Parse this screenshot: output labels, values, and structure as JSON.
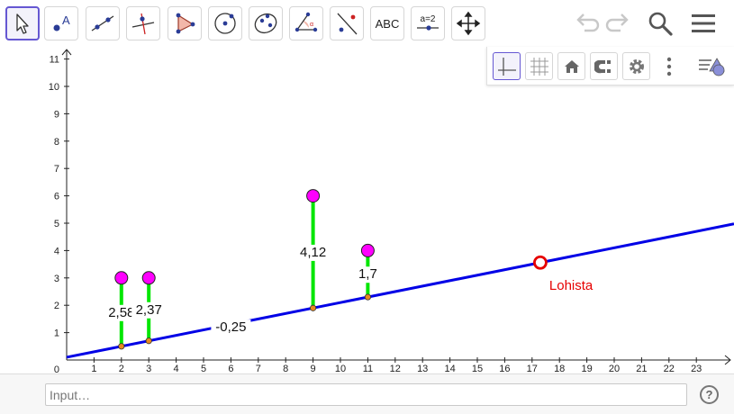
{
  "toolbar": {
    "tools": [
      {
        "name": "move-tool",
        "icon": "arrow-cursor-icon",
        "active": true
      },
      {
        "name": "point-tool",
        "icon": "point-icon"
      },
      {
        "name": "line-tool",
        "icon": "line-through-points-icon"
      },
      {
        "name": "perpendicular-line-tool",
        "icon": "perpendicular-line-icon"
      },
      {
        "name": "polygon-tool",
        "icon": "polygon-icon"
      },
      {
        "name": "circle-tool",
        "icon": "circle-center-point-icon"
      },
      {
        "name": "ellipse-tool",
        "icon": "ellipse-icon"
      },
      {
        "name": "angle-tool",
        "icon": "angle-icon"
      },
      {
        "name": "reflect-tool",
        "icon": "reflect-about-line-icon"
      },
      {
        "name": "text-tool",
        "icon": "text-icon",
        "label": "ABC"
      },
      {
        "name": "slider-tool",
        "icon": "slider-icon",
        "label": "a=2"
      },
      {
        "name": "move-view-tool",
        "icon": "move-graphics-view-icon"
      }
    ],
    "undo_icon": "undo-icon",
    "redo_icon": "redo-icon",
    "search_icon": "search-icon",
    "menu_icon": "hamburger-menu-icon"
  },
  "stylebar": {
    "buttons": [
      {
        "name": "axes-toggle",
        "icon": "axes-icon",
        "active": true
      },
      {
        "name": "grid-toggle",
        "icon": "grid-icon"
      },
      {
        "name": "home-view",
        "icon": "home-icon"
      },
      {
        "name": "point-capturing",
        "icon": "magnet-icon"
      },
      {
        "name": "settings",
        "icon": "gear-icon"
      },
      {
        "name": "more-options",
        "icon": "vertical-dots-icon"
      },
      {
        "name": "toggle-stylebar",
        "icon": "stylebar-shapes-icon"
      }
    ]
  },
  "graphics": {
    "x_ticks": [
      "1",
      "2",
      "3",
      "4",
      "5",
      "6",
      "7",
      "8",
      "9",
      "10",
      "11",
      "12",
      "13",
      "14",
      "15",
      "16",
      "17",
      "18",
      "19",
      "20",
      "21",
      "22",
      "23"
    ],
    "y_ticks": [
      "1",
      "2",
      "3",
      "4",
      "5",
      "6",
      "7",
      "8",
      "9",
      "10",
      "11"
    ],
    "origin_label": "0",
    "line": {
      "intercept": 0.1,
      "slope": 0.2,
      "color": "#0000e6"
    },
    "line_label": "-0,25",
    "points": [
      {
        "x": 2,
        "y": 3,
        "label": "2,58"
      },
      {
        "x": 3,
        "y": 3,
        "label": "2,37"
      },
      {
        "x": 9,
        "y": 6,
        "label": "4,12"
      },
      {
        "x": 11,
        "y": 4,
        "label": "1,7"
      }
    ],
    "point_color": "#ff00ff",
    "segment_color": "#00e600",
    "foot_color": "#e8891e",
    "handle": {
      "x": 17.3,
      "label": "Lohista",
      "color": "#e60000"
    }
  },
  "input": {
    "placeholder": "Input…",
    "value": ""
  },
  "help": {
    "label": "?"
  }
}
